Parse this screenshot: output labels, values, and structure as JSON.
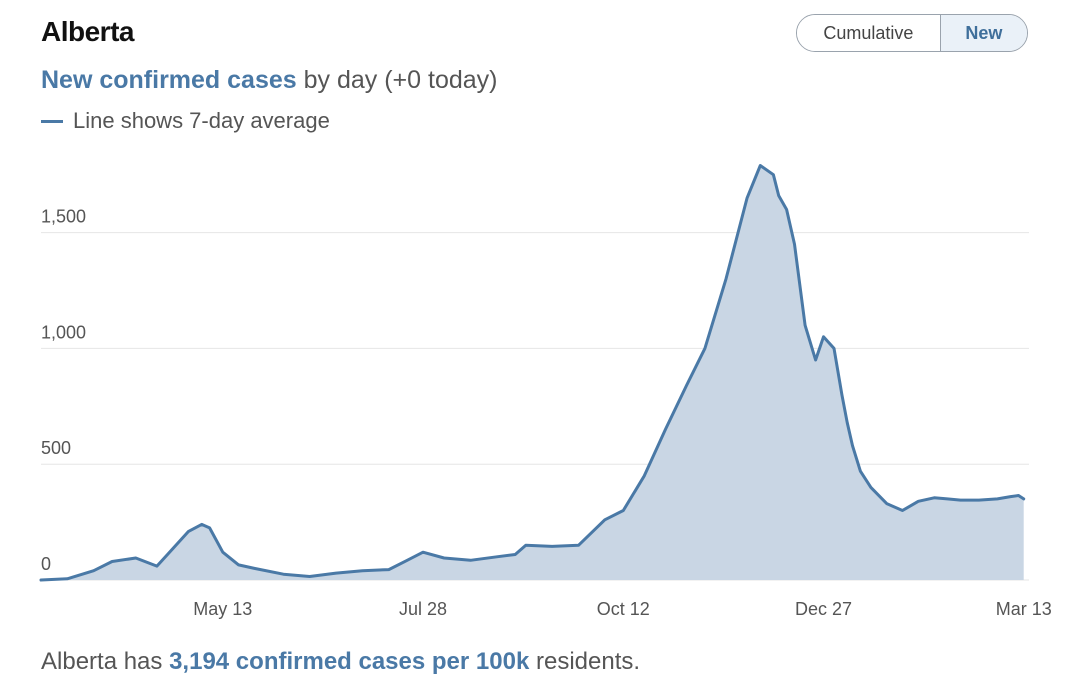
{
  "header": {
    "title": "Alberta"
  },
  "toggle": {
    "cumulative_label": "Cumulative",
    "new_label": "New",
    "selected": "New"
  },
  "subtitle": {
    "highlight": "New confirmed cases",
    "rest": " by day (+0 today)"
  },
  "legend": {
    "label": "Line shows 7-day average"
  },
  "footer": {
    "prefix": "Alberta has ",
    "highlight": "3,194 confirmed cases per 100k",
    "suffix": " residents."
  },
  "colors": {
    "line": "#4a79a6",
    "fill": "#c9d6e4",
    "grid": "#e6e6e6",
    "accent": "#4a79a6"
  },
  "chart_data": {
    "type": "area",
    "title": "New confirmed cases",
    "ylim": [
      0,
      1900
    ],
    "yticks": [
      0,
      500,
      1000,
      1500
    ],
    "ytick_labels": [
      "0",
      "500",
      "1,000",
      "1,500"
    ],
    "xlim": [
      "2020-03-05",
      "2021-03-15"
    ],
    "xticks": [
      "2020-05-13",
      "2020-07-28",
      "2020-10-12",
      "2020-12-27",
      "2021-03-13"
    ],
    "xtick_labels": [
      "May 13",
      "Jul 28",
      "Oct 12",
      "Dec 27",
      "Mar 13"
    ],
    "grid": true,
    "series": [
      {
        "name": "7-day average",
        "x": [
          "2020-03-05",
          "2020-03-15",
          "2020-03-25",
          "2020-04-01",
          "2020-04-10",
          "2020-04-18",
          "2020-04-22",
          "2020-04-30",
          "2020-05-05",
          "2020-05-08",
          "2020-05-13",
          "2020-05-19",
          "2020-05-25",
          "2020-06-05",
          "2020-06-15",
          "2020-06-25",
          "2020-07-05",
          "2020-07-15",
          "2020-07-22",
          "2020-07-28",
          "2020-08-05",
          "2020-08-15",
          "2020-08-25",
          "2020-09-01",
          "2020-09-05",
          "2020-09-15",
          "2020-09-25",
          "2020-10-05",
          "2020-10-12",
          "2020-10-20",
          "2020-10-28",
          "2020-11-05",
          "2020-11-12",
          "2020-11-20",
          "2020-11-28",
          "2020-12-03",
          "2020-12-08",
          "2020-12-10",
          "2020-12-13",
          "2020-12-16",
          "2020-12-20",
          "2020-12-24",
          "2020-12-27",
          "2020-12-31",
          "2021-01-03",
          "2021-01-05",
          "2021-01-07",
          "2021-01-10",
          "2021-01-14",
          "2021-01-20",
          "2021-01-26",
          "2021-02-01",
          "2021-02-07",
          "2021-02-12",
          "2021-02-17",
          "2021-02-24",
          "2021-03-03",
          "2021-03-08",
          "2021-03-11",
          "2021-03-13"
        ],
        "values": [
          0,
          5,
          40,
          80,
          95,
          60,
          110,
          210,
          240,
          225,
          120,
          65,
          50,
          25,
          15,
          30,
          40,
          45,
          85,
          120,
          95,
          85,
          100,
          110,
          150,
          145,
          150,
          260,
          300,
          450,
          650,
          840,
          1000,
          1300,
          1650,
          1790,
          1750,
          1660,
          1600,
          1450,
          1100,
          950,
          1050,
          1000,
          800,
          680,
          580,
          470,
          400,
          330,
          300,
          340,
          355,
          350,
          345,
          345,
          350,
          360,
          365,
          350
        ]
      }
    ]
  }
}
